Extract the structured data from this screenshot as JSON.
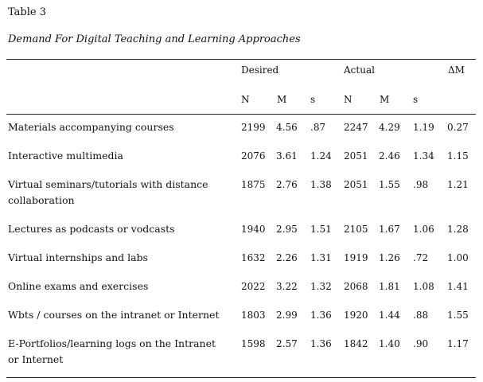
{
  "table": {
    "label": "Table 3",
    "title": "Demand For Digital Teaching and Learning Approaches",
    "groups": {
      "desired": "Desired",
      "actual": "Actual",
      "delta": "ΔM"
    },
    "subheaders": [
      "N",
      "M",
      "s",
      "N",
      "M",
      "s"
    ],
    "rows": [
      {
        "label": "Materials accompanying courses",
        "cells": [
          "2199",
          "4.56",
          ".87",
          "2247",
          "4.29",
          "1.19",
          "0.27"
        ]
      },
      {
        "label": "Interactive multimedia",
        "cells": [
          "2076",
          "3.61",
          "1.24",
          "2051",
          "2.46",
          "1.34",
          "1.15"
        ]
      },
      {
        "label": "Virtual seminars/tutorials with distance collaboration",
        "cells": [
          "1875",
          "2.76",
          "1.38",
          "2051",
          "1.55",
          ".98",
          "1.21"
        ]
      },
      {
        "label": "Lectures as podcasts or vodcasts",
        "cells": [
          "1940",
          "2.95",
          "1.51",
          "2105",
          "1.67",
          "1.06",
          "1.28"
        ]
      },
      {
        "label": "Virtual internships and labs",
        "cells": [
          "1632",
          "2.26",
          "1.31",
          "1919",
          "1.26",
          ".72",
          "1.00"
        ]
      },
      {
        "label": "Online exams and exercises",
        "cells": [
          "2022",
          "3.22",
          "1.32",
          "2068",
          "1.81",
          "1.08",
          "1.41"
        ]
      },
      {
        "label": "Wbts / courses on the intranet or Internet",
        "cells": [
          "1803",
          "2.99",
          "1.36",
          "1920",
          "1.44",
          ".88",
          "1.55"
        ]
      },
      {
        "label": "E-Portfolios/learning logs on the Intranet or Internet",
        "cells": [
          "1598",
          "2.57",
          "1.36",
          "1842",
          "1.40",
          ".90",
          "1.17"
        ]
      }
    ]
  }
}
